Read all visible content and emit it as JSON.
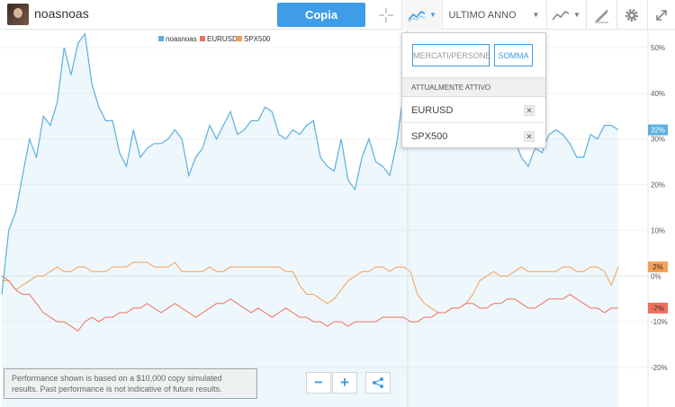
{
  "header": {
    "username": "noasnoas",
    "copy_label": "Copia",
    "period_label": "ULTIMO ANNO"
  },
  "icons": {
    "crosshair": "crosshair-icon",
    "compare": "compare-chart-icon",
    "chart_type": "line-chart-icon",
    "draw": "draw-tool-icon",
    "settings": "gear-icon",
    "expand": "expand-icon",
    "share": "share-icon"
  },
  "dropdown": {
    "markets_people_placeholder": "MERCATI/PERSONE",
    "sum_label": "SOMMA",
    "active_header": "ATTUALMENTE ATTIVO",
    "items": [
      {
        "label": "EURUSD"
      },
      {
        "label": "SPX500"
      }
    ]
  },
  "disclaimer": "Performance shown is based on a $10,000 copy simulated results. Past performance is not indicative of future results.",
  "zoom": {
    "minus": "−",
    "plus": "+"
  },
  "colors": {
    "primary": "#3e9de6",
    "noasnoas": "#5ab0e0",
    "eurusd": "#f07060",
    "spx500": "#f5a055"
  },
  "chart_data": {
    "type": "line",
    "ylim": [
      -28,
      52
    ],
    "yticks": [
      50,
      40,
      30,
      20,
      10,
      0,
      -10,
      -20
    ],
    "ytick_labels": [
      "50%",
      "40%",
      "30%",
      "20%",
      "10%",
      "0%",
      "-10%",
      "-20%"
    ],
    "series": [
      {
        "name": "noasnoas",
        "last_label": "32%",
        "values": [
          -4,
          10,
          14,
          22,
          30,
          26,
          35,
          33,
          38,
          50,
          44,
          51,
          53,
          42,
          37,
          34,
          34,
          27,
          24,
          32,
          26,
          28,
          29,
          29,
          30,
          32,
          30,
          22,
          26,
          28,
          33,
          30,
          33,
          36,
          31,
          32,
          34,
          34,
          37,
          36,
          31,
          30,
          32,
          31,
          33,
          34,
          26,
          24,
          23,
          30,
          21,
          19,
          26,
          30,
          25,
          24,
          22,
          29,
          40,
          44,
          47,
          46,
          47,
          49,
          45,
          43,
          41,
          38,
          36,
          33,
          34,
          40,
          45,
          36,
          30,
          26,
          24,
          28,
          27,
          31,
          32,
          31,
          29,
          26,
          26,
          31,
          30,
          33,
          33,
          32
        ]
      },
      {
        "name": "EURUSD",
        "last_label": "-7%",
        "values": [
          0,
          -1,
          -3,
          -4,
          -4,
          -6,
          -8,
          -9,
          -10,
          -10,
          -11,
          -12,
          -10,
          -9,
          -10,
          -9,
          -9,
          -8,
          -8,
          -7,
          -7,
          -6,
          -7,
          -8,
          -7,
          -6,
          -7,
          -8,
          -9,
          -8,
          -7,
          -6,
          -6,
          -5,
          -6,
          -7,
          -8,
          -7,
          -8,
          -9,
          -8,
          -7,
          -8,
          -9,
          -9,
          -10,
          -10,
          -11,
          -10,
          -10,
          -11,
          -10,
          -10,
          -10,
          -10,
          -9,
          -9,
          -9,
          -9,
          -10,
          -10,
          -9,
          -9,
          -8,
          -8,
          -7,
          -7,
          -6,
          -6,
          -7,
          -7,
          -6,
          -6,
          -5,
          -5,
          -6,
          -7,
          -7,
          -6,
          -5,
          -5,
          -5,
          -4,
          -5,
          -6,
          -7,
          -7,
          -8,
          -7,
          -7
        ]
      },
      {
        "name": "SPX500",
        "last_label": "2%",
        "values": [
          -1,
          -1,
          -3,
          -2,
          -1,
          0,
          0,
          1,
          2,
          1,
          1,
          2,
          2,
          1,
          1,
          1,
          2,
          2,
          2,
          3,
          3,
          3,
          2,
          2,
          2,
          3,
          1,
          1,
          1,
          1,
          2,
          1,
          1,
          2,
          2,
          2,
          2,
          2,
          2,
          2,
          2,
          1,
          1,
          -2,
          -4,
          -4,
          -5,
          -6,
          -5,
          -3,
          -1,
          0,
          1,
          1,
          2,
          2,
          1,
          2,
          2,
          1,
          -4,
          -6,
          -7,
          -8,
          -8,
          -7,
          -7,
          -6,
          -4,
          -1,
          0,
          1,
          0,
          0,
          1,
          2,
          1,
          1,
          1,
          1,
          1,
          2,
          2,
          1,
          1,
          2,
          2,
          1,
          -2,
          2
        ]
      }
    ]
  }
}
